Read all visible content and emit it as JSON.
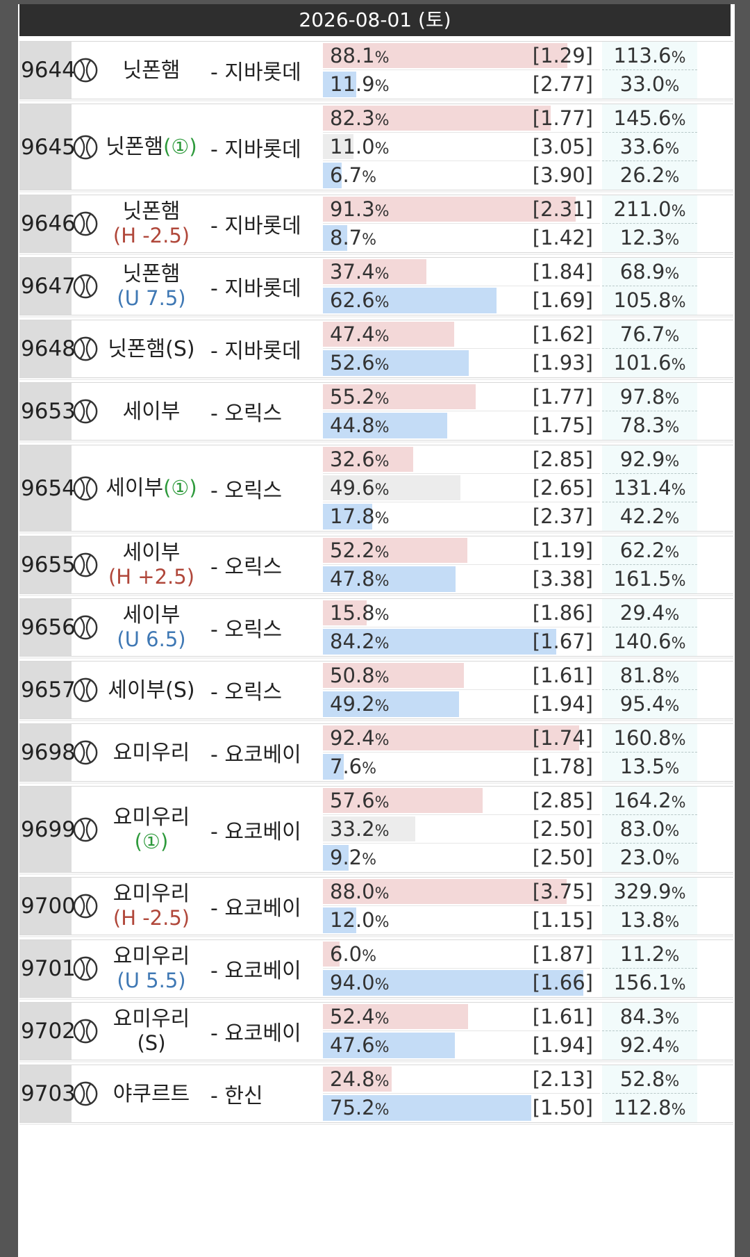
{
  "header": {
    "date": "2026-08-01 (토)"
  },
  "colors": {
    "home_bar": "#f3d8d8",
    "away_bar": "#c4dcf6",
    "draw_bar": "#ececec"
  },
  "games": [
    {
      "id": "9644",
      "home": "닛폰햄",
      "sub": "",
      "away": "- 지바롯데",
      "rows": [
        {
          "kind": "home",
          "pct": 88.1,
          "pct_text": "88.1",
          "odds": "[1.29]",
          "ret": "113.6"
        },
        {
          "kind": "away",
          "pct": 11.9,
          "pct_text": "11.9",
          "odds": "[2.77]",
          "ret": "33.0"
        }
      ]
    },
    {
      "id": "9645",
      "home": "닛폰햄",
      "sub": "(①)",
      "sub_type": "o",
      "sub_inline": true,
      "away": "- 지바롯데",
      "rows": [
        {
          "kind": "home",
          "pct": 82.3,
          "pct_text": "82.3",
          "odds": "[1.77]",
          "ret": "145.6"
        },
        {
          "kind": "draw",
          "pct": 11.0,
          "pct_text": "11.0",
          "odds": "[3.05]",
          "ret": "33.6"
        },
        {
          "kind": "away",
          "pct": 6.7,
          "pct_text": "6.7",
          "odds": "[3.90]",
          "ret": "26.2"
        }
      ]
    },
    {
      "id": "9646",
      "home": "닛폰햄",
      "sub": "(H -2.5)",
      "sub_type": "h",
      "away": "- 지바롯데",
      "rows": [
        {
          "kind": "home",
          "pct": 91.3,
          "pct_text": "91.3",
          "odds": "[2.31]",
          "ret": "211.0"
        },
        {
          "kind": "away",
          "pct": 8.7,
          "pct_text": "8.7",
          "odds": "[1.42]",
          "ret": "12.3"
        }
      ]
    },
    {
      "id": "9647",
      "home": "닛폰햄",
      "sub": "(U 7.5)",
      "sub_type": "u",
      "away": "- 지바롯데",
      "rows": [
        {
          "kind": "home",
          "pct": 37.4,
          "pct_text": "37.4",
          "odds": "[1.84]",
          "ret": "68.9"
        },
        {
          "kind": "away",
          "pct": 62.6,
          "pct_text": "62.6",
          "odds": "[1.69]",
          "ret": "105.8"
        }
      ]
    },
    {
      "id": "9648",
      "home": "닛폰햄(S)",
      "sub": "",
      "away": "- 지바롯데",
      "rows": [
        {
          "kind": "home",
          "pct": 47.4,
          "pct_text": "47.4",
          "odds": "[1.62]",
          "ret": "76.7"
        },
        {
          "kind": "away",
          "pct": 52.6,
          "pct_text": "52.6",
          "odds": "[1.93]",
          "ret": "101.6"
        }
      ]
    },
    {
      "id": "9653",
      "home": "세이부",
      "sub": "",
      "away": "- 오릭스",
      "rows": [
        {
          "kind": "home",
          "pct": 55.2,
          "pct_text": "55.2",
          "odds": "[1.77]",
          "ret": "97.8"
        },
        {
          "kind": "away",
          "pct": 44.8,
          "pct_text": "44.8",
          "odds": "[1.75]",
          "ret": "78.3"
        }
      ]
    },
    {
      "id": "9654",
      "home": "세이부",
      "sub": "(①)",
      "sub_type": "o",
      "sub_inline": true,
      "away": "- 오릭스",
      "rows": [
        {
          "kind": "home",
          "pct": 32.6,
          "pct_text": "32.6",
          "odds": "[2.85]",
          "ret": "92.9"
        },
        {
          "kind": "draw",
          "pct": 49.6,
          "pct_text": "49.6",
          "odds": "[2.65]",
          "ret": "131.4"
        },
        {
          "kind": "away",
          "pct": 17.8,
          "pct_text": "17.8",
          "odds": "[2.37]",
          "ret": "42.2"
        }
      ]
    },
    {
      "id": "9655",
      "home": "세이부",
      "sub": "(H +2.5)",
      "sub_type": "h",
      "away": "- 오릭스",
      "rows": [
        {
          "kind": "home",
          "pct": 52.2,
          "pct_text": "52.2",
          "odds": "[1.19]",
          "ret": "62.2"
        },
        {
          "kind": "away",
          "pct": 47.8,
          "pct_text": "47.8",
          "odds": "[3.38]",
          "ret": "161.5"
        }
      ]
    },
    {
      "id": "9656",
      "home": "세이부",
      "sub": "(U 6.5)",
      "sub_type": "u",
      "away": "- 오릭스",
      "rows": [
        {
          "kind": "home",
          "pct": 15.8,
          "pct_text": "15.8",
          "odds": "[1.86]",
          "ret": "29.4"
        },
        {
          "kind": "away",
          "pct": 84.2,
          "pct_text": "84.2",
          "odds": "[1.67]",
          "ret": "140.6"
        }
      ]
    },
    {
      "id": "9657",
      "home": "세이부(S)",
      "sub": "",
      "away": "- 오릭스",
      "rows": [
        {
          "kind": "home",
          "pct": 50.8,
          "pct_text": "50.8",
          "odds": "[1.61]",
          "ret": "81.8"
        },
        {
          "kind": "away",
          "pct": 49.2,
          "pct_text": "49.2",
          "odds": "[1.94]",
          "ret": "95.4"
        }
      ]
    },
    {
      "id": "9698",
      "home": "요미우리",
      "sub": "",
      "away": "- 요코베이",
      "rows": [
        {
          "kind": "home",
          "pct": 92.4,
          "pct_text": "92.4",
          "odds": "[1.74]",
          "ret": "160.8"
        },
        {
          "kind": "away",
          "pct": 7.6,
          "pct_text": "7.6",
          "odds": "[1.78]",
          "ret": "13.5"
        }
      ]
    },
    {
      "id": "9699",
      "home": "요미우리",
      "sub": "(①)",
      "sub_type": "o",
      "away": "- 요코베이",
      "rows": [
        {
          "kind": "home",
          "pct": 57.6,
          "pct_text": "57.6",
          "odds": "[2.85]",
          "ret": "164.2"
        },
        {
          "kind": "draw",
          "pct": 33.2,
          "pct_text": "33.2",
          "odds": "[2.50]",
          "ret": "83.0"
        },
        {
          "kind": "away",
          "pct": 9.2,
          "pct_text": "9.2",
          "odds": "[2.50]",
          "ret": "23.0"
        }
      ]
    },
    {
      "id": "9700",
      "home": "요미우리",
      "sub": "(H -2.5)",
      "sub_type": "h",
      "away": "- 요코베이",
      "rows": [
        {
          "kind": "home",
          "pct": 88.0,
          "pct_text": "88.0",
          "odds": "[3.75]",
          "ret": "329.9"
        },
        {
          "kind": "away",
          "pct": 12.0,
          "pct_text": "12.0",
          "odds": "[1.15]",
          "ret": "13.8"
        }
      ]
    },
    {
      "id": "9701",
      "home": "요미우리",
      "sub": "(U 5.5)",
      "sub_type": "u",
      "away": "- 요코베이",
      "rows": [
        {
          "kind": "home",
          "pct": 6.0,
          "pct_text": "6.0",
          "odds": "[1.87]",
          "ret": "11.2"
        },
        {
          "kind": "away",
          "pct": 94.0,
          "pct_text": "94.0",
          "odds": "[1.66]",
          "ret": "156.1"
        }
      ]
    },
    {
      "id": "9702",
      "home": "요미우리",
      "sub": "(S)",
      "sub_type": "n",
      "away": "- 요코베이",
      "rows": [
        {
          "kind": "home",
          "pct": 52.4,
          "pct_text": "52.4",
          "odds": "[1.61]",
          "ret": "84.3"
        },
        {
          "kind": "away",
          "pct": 47.6,
          "pct_text": "47.6",
          "odds": "[1.94]",
          "ret": "92.4"
        }
      ]
    },
    {
      "id": "9703",
      "home": "야쿠르트",
      "sub": "",
      "away": "- 한신",
      "rows": [
        {
          "kind": "home",
          "pct": 24.8,
          "pct_text": "24.8",
          "odds": "[2.13]",
          "ret": "52.8"
        },
        {
          "kind": "away",
          "pct": 75.2,
          "pct_text": "75.2",
          "odds": "[1.50]",
          "ret": "112.8"
        }
      ]
    }
  ]
}
